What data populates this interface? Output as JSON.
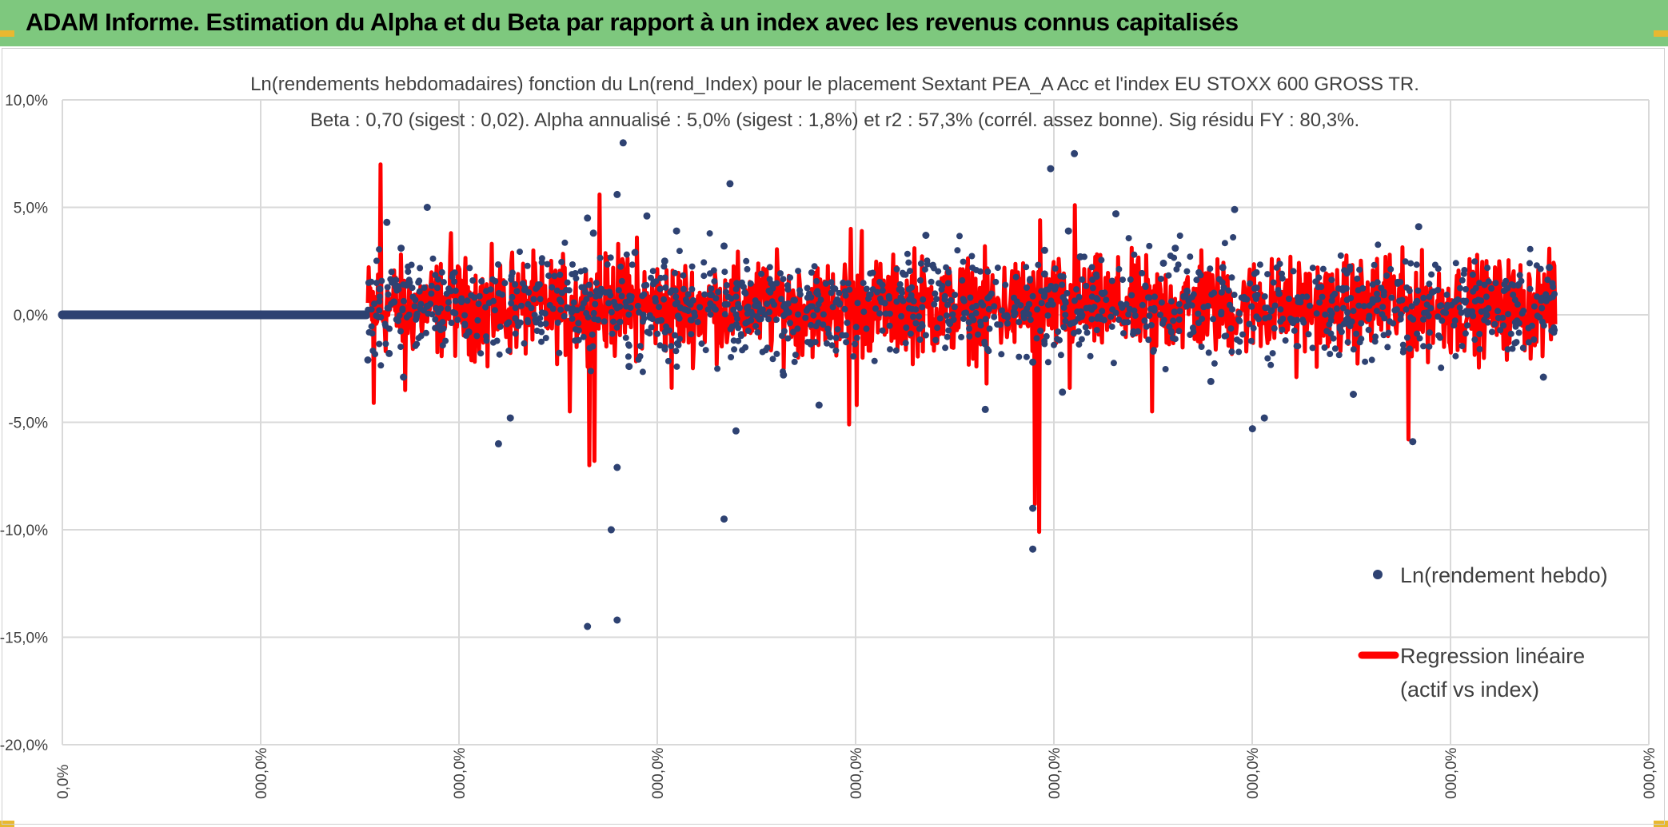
{
  "banner": {
    "title": "ADAM Informe. Estimation du Alpha et du Beta par rapport à un index avec les revenus connus capitalisés",
    "color": "#7ec87e"
  },
  "chart_data": {
    "type": "scatter",
    "title": "Ln(rendements hebdomadaires) fonction du Ln(rend_Index) pour le placement Sextant PEA_A Acc et l'index EU STOXX 600 GROSS TR.",
    "subtitle": "Beta : 0,70 (sigest : 0,02). Alpha annualisé : 5,0% (sigest : 1,8%) et r2 : 57,3% (corrél. assez bonne). Sig résidu FY : 80,3%.",
    "xlabel": "",
    "ylabel": "",
    "ylim": [
      -20,
      10
    ],
    "y_ticks": [
      "10,0%",
      "5,0%",
      "0,0%",
      "-5,0%",
      "-10,0%",
      "-15,0%",
      "-20,0%"
    ],
    "x_ticks": [
      "0,0%",
      "000,0%",
      "000,0%",
      "000,0%",
      "000,0%",
      "000,0%",
      "000,0%",
      "000,0%",
      "000,0%"
    ],
    "grid": true,
    "legend_placement": "right",
    "series": [
      {
        "name": "Ln(rendement hebdo)",
        "kind": "points",
        "color": "#2e4272",
        "values": [
          -2.1,
          1.2,
          4.3,
          -1.8,
          0.6,
          3.1,
          -2.9,
          1.5,
          0.4,
          5.0,
          -0.8,
          -4.8,
          4.5,
          -14.5,
          3.8,
          -10.0,
          -14.2,
          -7.1,
          5.6,
          8.0,
          2.9,
          -2.4,
          4.6,
          -6.0,
          -9.5,
          6.1,
          3.2,
          -5.4,
          2.5,
          3.9,
          -2.8,
          -4.2,
          3.7,
          -0.4,
          1.9,
          -4.4,
          3.0,
          2.7,
          -2.2,
          4.7,
          -3.1,
          1.1,
          -10.9,
          -9.0,
          6.8,
          3.9,
          7.5,
          -3.6,
          2.4,
          4.9,
          -5.3,
          2.2,
          -4.8,
          3.1,
          -3.7,
          4.1,
          -5.9,
          2.2,
          -2.9
        ]
      },
      {
        "name": "Regression linéaire (actif vs index)",
        "legend_lines": [
          "Regression linéaire",
          "(actif vs index)"
        ],
        "kind": "line",
        "color": "#ff0000",
        "values": [
          -4.1,
          7.0,
          -3.5,
          3.8,
          -2.4,
          2.9,
          -4.5,
          3.3,
          -7.0,
          5.6,
          -6.8,
          3.6,
          -1.6,
          -3.4,
          4.0,
          -5.1,
          3.9,
          -4.2,
          3.1,
          -3.2,
          2.4,
          -10.1,
          4.4,
          -8.8,
          5.1,
          -3.4,
          3.0,
          -4.5,
          2.6,
          -2.9,
          2.8,
          -5.8,
          2.7
        ]
      }
    ]
  }
}
